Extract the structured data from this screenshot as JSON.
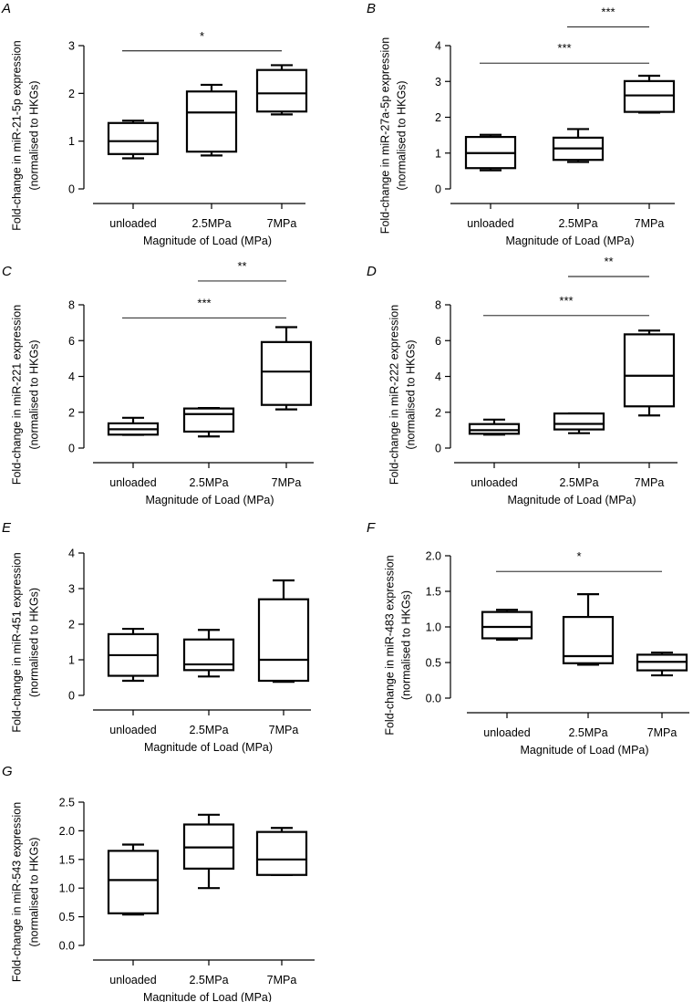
{
  "figure": {
    "colors": {
      "ink": "#000000",
      "background": "#ffffff"
    },
    "x_axis_title": "Magnitude of Load (MPa)",
    "categories": [
      "unloaded",
      "2.5MPa",
      "7MPa"
    ]
  },
  "chart_data": [
    {
      "panel": "A",
      "type": "box",
      "ylabel_line1": "Fold-change in miR-21-5p expression",
      "ylabel_line2": "(normalised to HKGs)",
      "xlabel": "Magnitude of Load (MPa)",
      "categories": [
        "unloaded",
        "2.5MPa",
        "7MPa"
      ],
      "ylim": [
        0,
        3
      ],
      "yticks": [
        0,
        1,
        2,
        3
      ],
      "ytick_labels": [
        "0",
        "1",
        "2",
        "3"
      ],
      "boxes": [
        {
          "min": 0.64,
          "q1": 0.73,
          "median": 1.0,
          "q3": 1.38,
          "max": 1.43
        },
        {
          "min": 0.7,
          "q1": 0.78,
          "median": 1.6,
          "q3": 2.04,
          "max": 2.18
        },
        {
          "min": 1.56,
          "q1": 1.62,
          "median": 2.0,
          "q3": 2.49,
          "max": 2.59
        }
      ],
      "significance": [
        {
          "from": 0,
          "to": 2,
          "label": "*",
          "y": 2.89
        }
      ]
    },
    {
      "panel": "B",
      "type": "box",
      "ylabel_line1": "Fold-change in miR-27a-5p expression",
      "ylabel_line2": "(normalised to HKGs)",
      "xlabel": "Magnitude of Load (MPa)",
      "categories": [
        "unloaded",
        "2.5MPa",
        "7MPa"
      ],
      "ylim": [
        0,
        4
      ],
      "yticks": [
        0,
        1,
        2,
        3,
        4
      ],
      "ytick_labels": [
        "0",
        "1",
        "2",
        "3",
        "4"
      ],
      "boxes": [
        {
          "min": 0.52,
          "q1": 0.58,
          "median": 1.0,
          "q3": 1.45,
          "max": 1.51
        },
        {
          "min": 0.75,
          "q1": 0.81,
          "median": 1.13,
          "q3": 1.43,
          "max": 1.67
        },
        {
          "min": 2.13,
          "q1": 2.15,
          "median": 2.61,
          "q3": 3.01,
          "max": 3.16
        }
      ],
      "significance": [
        {
          "from": 0,
          "to": 2,
          "label": "***",
          "y": 3.51
        },
        {
          "from": 1,
          "to": 2,
          "label": "***",
          "y": 4.52
        }
      ]
    },
    {
      "panel": "C",
      "type": "box",
      "ylabel_line1": "Fold-change in miR-221  expression",
      "ylabel_line2": "(normalised to HKGs)",
      "xlabel": "Magnitude of Load (MPa)",
      "categories": [
        "unloaded",
        "2.5MPa",
        "7MPa"
      ],
      "ylim": [
        0,
        8
      ],
      "yticks": [
        0,
        2,
        4,
        6,
        8
      ],
      "ytick_labels": [
        "0",
        "2",
        "4",
        "6",
        "8"
      ],
      "boxes": [
        {
          "min": 0.74,
          "q1": 0.75,
          "median": 1.05,
          "q3": 1.38,
          "max": 1.69
        },
        {
          "min": 0.65,
          "q1": 0.92,
          "median": 1.9,
          "q3": 2.21,
          "max": 2.24
        },
        {
          "min": 2.16,
          "q1": 2.41,
          "median": 4.27,
          "q3": 5.92,
          "max": 6.75
        }
      ],
      "significance": [
        {
          "from": 0,
          "to": 2,
          "label": "***",
          "y": 7.27
        },
        {
          "from": 1,
          "to": 2,
          "label": "**",
          "y": 9.33
        }
      ]
    },
    {
      "panel": "D",
      "type": "box",
      "ylabel_line1": "Fold-change in miR-222 expression",
      "ylabel_line2": "(normalised to HKGs)",
      "xlabel": "Magnitude of Load (MPa)",
      "categories": [
        "unloaded",
        "2.5MPa",
        "7MPa"
      ],
      "ylim": [
        0,
        8
      ],
      "yticks": [
        0,
        2,
        4,
        6,
        8
      ],
      "ytick_labels": [
        "0",
        "2",
        "4",
        "6",
        "8"
      ],
      "boxes": [
        {
          "min": 0.75,
          "q1": 0.8,
          "median": 1.0,
          "q3": 1.34,
          "max": 1.59
        },
        {
          "min": 0.83,
          "q1": 1.04,
          "median": 1.35,
          "q3": 1.93,
          "max": 1.94
        },
        {
          "min": 1.82,
          "q1": 2.33,
          "median": 4.04,
          "q3": 6.35,
          "max": 6.56
        }
      ],
      "significance": [
        {
          "from": 0,
          "to": 2,
          "label": "***",
          "y": 7.4
        },
        {
          "from": 1,
          "to": 2,
          "label": "**",
          "y": 9.58
        }
      ]
    },
    {
      "panel": "E",
      "type": "box",
      "ylabel_line1": "Fold-change in miR-451  expression",
      "ylabel_line2": "(normalised to HKGs)",
      "xlabel": "Magnitude of Load (MPa)",
      "categories": [
        "unloaded",
        "2.5MPa",
        "7MPa"
      ],
      "ylim": [
        0,
        4
      ],
      "yticks": [
        0,
        1,
        2,
        3,
        4
      ],
      "ytick_labels": [
        "0",
        "1",
        "2",
        "3",
        "4"
      ],
      "boxes": [
        {
          "min": 0.41,
          "q1": 0.55,
          "median": 1.13,
          "q3": 1.72,
          "max": 1.87
        },
        {
          "min": 0.53,
          "q1": 0.71,
          "median": 0.87,
          "q3": 1.57,
          "max": 1.84
        },
        {
          "min": 0.38,
          "q1": 0.41,
          "median": 1.0,
          "q3": 2.7,
          "max": 3.23
        }
      ],
      "significance": []
    },
    {
      "panel": "F",
      "type": "box",
      "ylabel_line1": "Fold-change in miR-483 expression",
      "ylabel_line2": "(normalised to HKGs)",
      "xlabel": "Magnitude of Load (MPa)",
      "categories": [
        "unloaded",
        "2.5MPa",
        "7MPa"
      ],
      "ylim": [
        0,
        2.0
      ],
      "yticks": [
        0,
        0.5,
        1.0,
        1.5,
        2.0
      ],
      "ytick_labels": [
        "0.0",
        "0.5",
        "1.0",
        "1.5",
        "2.0"
      ],
      "boxes": [
        {
          "min": 0.82,
          "q1": 0.84,
          "median": 1.0,
          "q3": 1.21,
          "max": 1.24
        },
        {
          "min": 0.47,
          "q1": 0.49,
          "median": 0.59,
          "q3": 1.14,
          "max": 1.46
        },
        {
          "min": 0.32,
          "q1": 0.39,
          "median": 0.51,
          "q3": 0.61,
          "max": 0.64
        }
      ],
      "significance": [
        {
          "from": 0,
          "to": 2,
          "label": "*",
          "y": 1.78
        }
      ]
    },
    {
      "panel": "G",
      "type": "box",
      "ylabel_line1": "Fold-change in miR-543 expression",
      "ylabel_line2": "(normalised to HKGs)",
      "xlabel": "Magnitude of Load (MPa)",
      "categories": [
        "unloaded",
        "2.5MPa",
        "7MPa"
      ],
      "ylim": [
        0,
        2.5
      ],
      "yticks": [
        0,
        0.5,
        1.0,
        1.5,
        2.0,
        2.5
      ],
      "ytick_labels": [
        "0.0",
        "0.5",
        "1.0",
        "1.5",
        "2.0",
        "2.5"
      ],
      "boxes": [
        {
          "min": 0.54,
          "q1": 0.56,
          "median": 1.14,
          "q3": 1.65,
          "max": 1.76
        },
        {
          "min": 1.0,
          "q1": 1.34,
          "median": 1.71,
          "q3": 2.11,
          "max": 2.28
        },
        {
          "min": 1.23,
          "q1": 1.23,
          "median": 1.5,
          "q3": 1.98,
          "max": 2.05
        }
      ],
      "significance": []
    }
  ]
}
